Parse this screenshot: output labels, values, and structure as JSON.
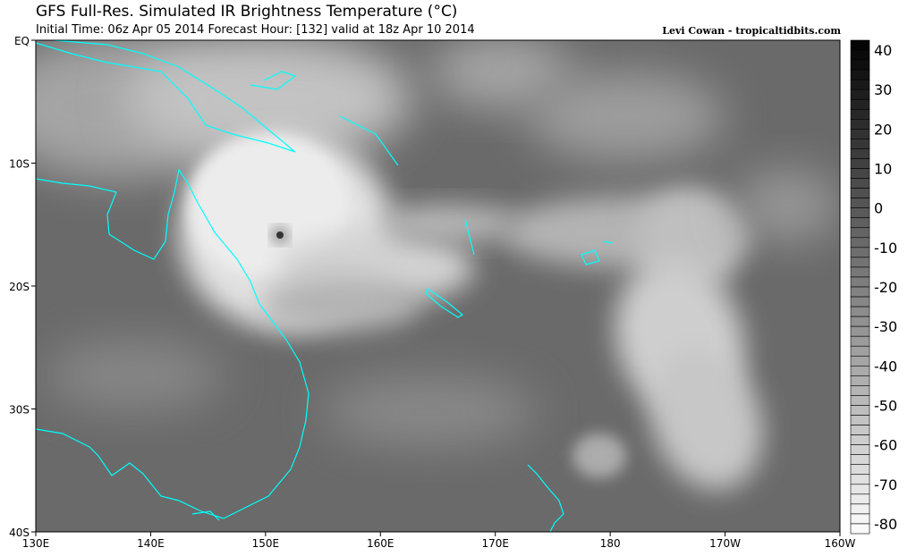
{
  "header": {
    "title": "GFS Full-Res. Simulated IR Brightness Temperature (°C)",
    "subtitle": "Initial Time: 06z Apr 05 2014 Forecast Hour: [132] valid at 18z Apr 10 2014",
    "credit": "Levi Cowan - tropicaltidbits.com"
  },
  "map": {
    "lat_labels": [
      "EQ",
      "10S",
      "20S",
      "30S",
      "40S"
    ],
    "lon_labels": [
      "130E",
      "140E",
      "150E",
      "160E",
      "170E",
      "180",
      "170W",
      "160W"
    ],
    "coastline_color": "#00ffff",
    "background_color": "#6a6a6a"
  },
  "colorbar": {
    "ticks": [
      "40",
      "30",
      "20",
      "10",
      "0",
      "-10",
      "-20",
      "-30",
      "-40",
      "-50",
      "-60",
      "-70",
      "-80"
    ],
    "min": -82.5,
    "max": 42.5,
    "step": 2.5
  }
}
